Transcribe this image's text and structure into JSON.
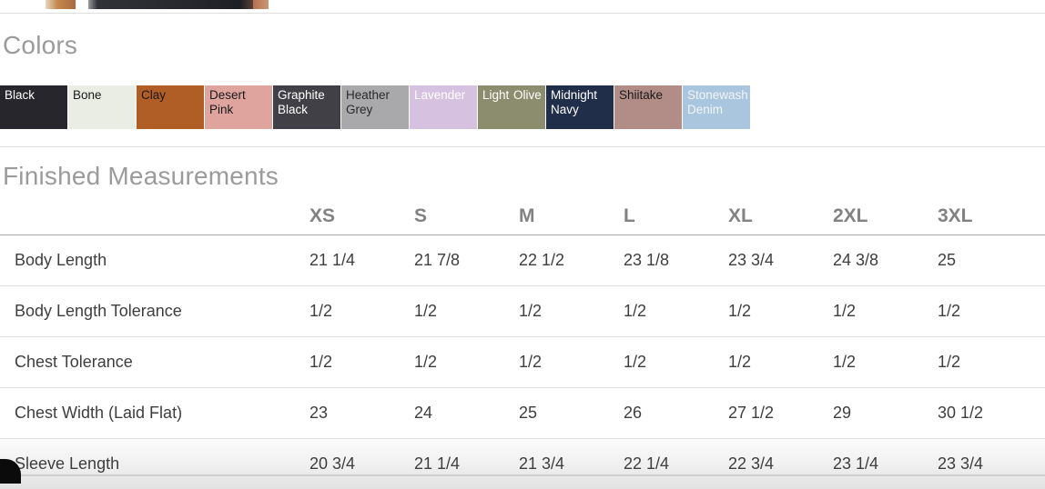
{
  "colors_section": {
    "title": "Colors",
    "swatches": [
      {
        "name": "Black",
        "bg": "#26262c",
        "text_color": "#ffffff"
      },
      {
        "name": "Bone",
        "bg": "#e9ede4",
        "text_color": "#1a1a1a"
      },
      {
        "name": "Clay",
        "bg": "#b05d26",
        "text_color": "#1a1a1a"
      },
      {
        "name": "Desert Pink",
        "bg": "#dfa49e",
        "text_color": "#1a1a1a"
      },
      {
        "name": "Graphite Black",
        "bg": "#414046",
        "text_color": "#ffffff"
      },
      {
        "name": "Heather Grey",
        "bg": "#a9a9ab",
        "text_color": "#2a2a2a"
      },
      {
        "name": "Lavender",
        "bg": "#d6c1e1",
        "text_color": "#ffffff"
      },
      {
        "name": "Light Olive",
        "bg": "#8c8d6e",
        "text_color": "#ffffff"
      },
      {
        "name": "Midnight Navy",
        "bg": "#202e49",
        "text_color": "#ffffff"
      },
      {
        "name": "Shiitake",
        "bg": "#b28d87",
        "text_color": "#1a1a1a"
      },
      {
        "name": "Stonewash Denim",
        "bg": "#aac6de",
        "text_color": "#f2f5f8"
      }
    ]
  },
  "measurements_section": {
    "title": "Finished Measurements",
    "columns": [
      "XS",
      "S",
      "M",
      "L",
      "XL",
      "2XL",
      "3XL"
    ],
    "rows": [
      {
        "label": "Body Length",
        "values": [
          "21 1/4",
          "21 7/8",
          "22 1/2",
          "23 1/8",
          "23 3/4",
          "24 3/8",
          "25"
        ]
      },
      {
        "label": "Body Length Tolerance",
        "values": [
          "1/2",
          "1/2",
          "1/2",
          "1/2",
          "1/2",
          "1/2",
          "1/2"
        ]
      },
      {
        "label": "Chest Tolerance",
        "values": [
          "1/2",
          "1/2",
          "1/2",
          "1/2",
          "1/2",
          "1/2",
          "1/2"
        ]
      },
      {
        "label": "Chest Width (Laid Flat)",
        "values": [
          "23",
          "24",
          "25",
          "26",
          "27 1/2",
          "29",
          "30 1/2"
        ]
      },
      {
        "label": "Sleeve Length",
        "values": [
          "20 3/4",
          "21 1/4",
          "21 3/4",
          "22 1/4",
          "22 3/4",
          "23 1/4",
          "23 3/4"
        ]
      }
    ]
  }
}
